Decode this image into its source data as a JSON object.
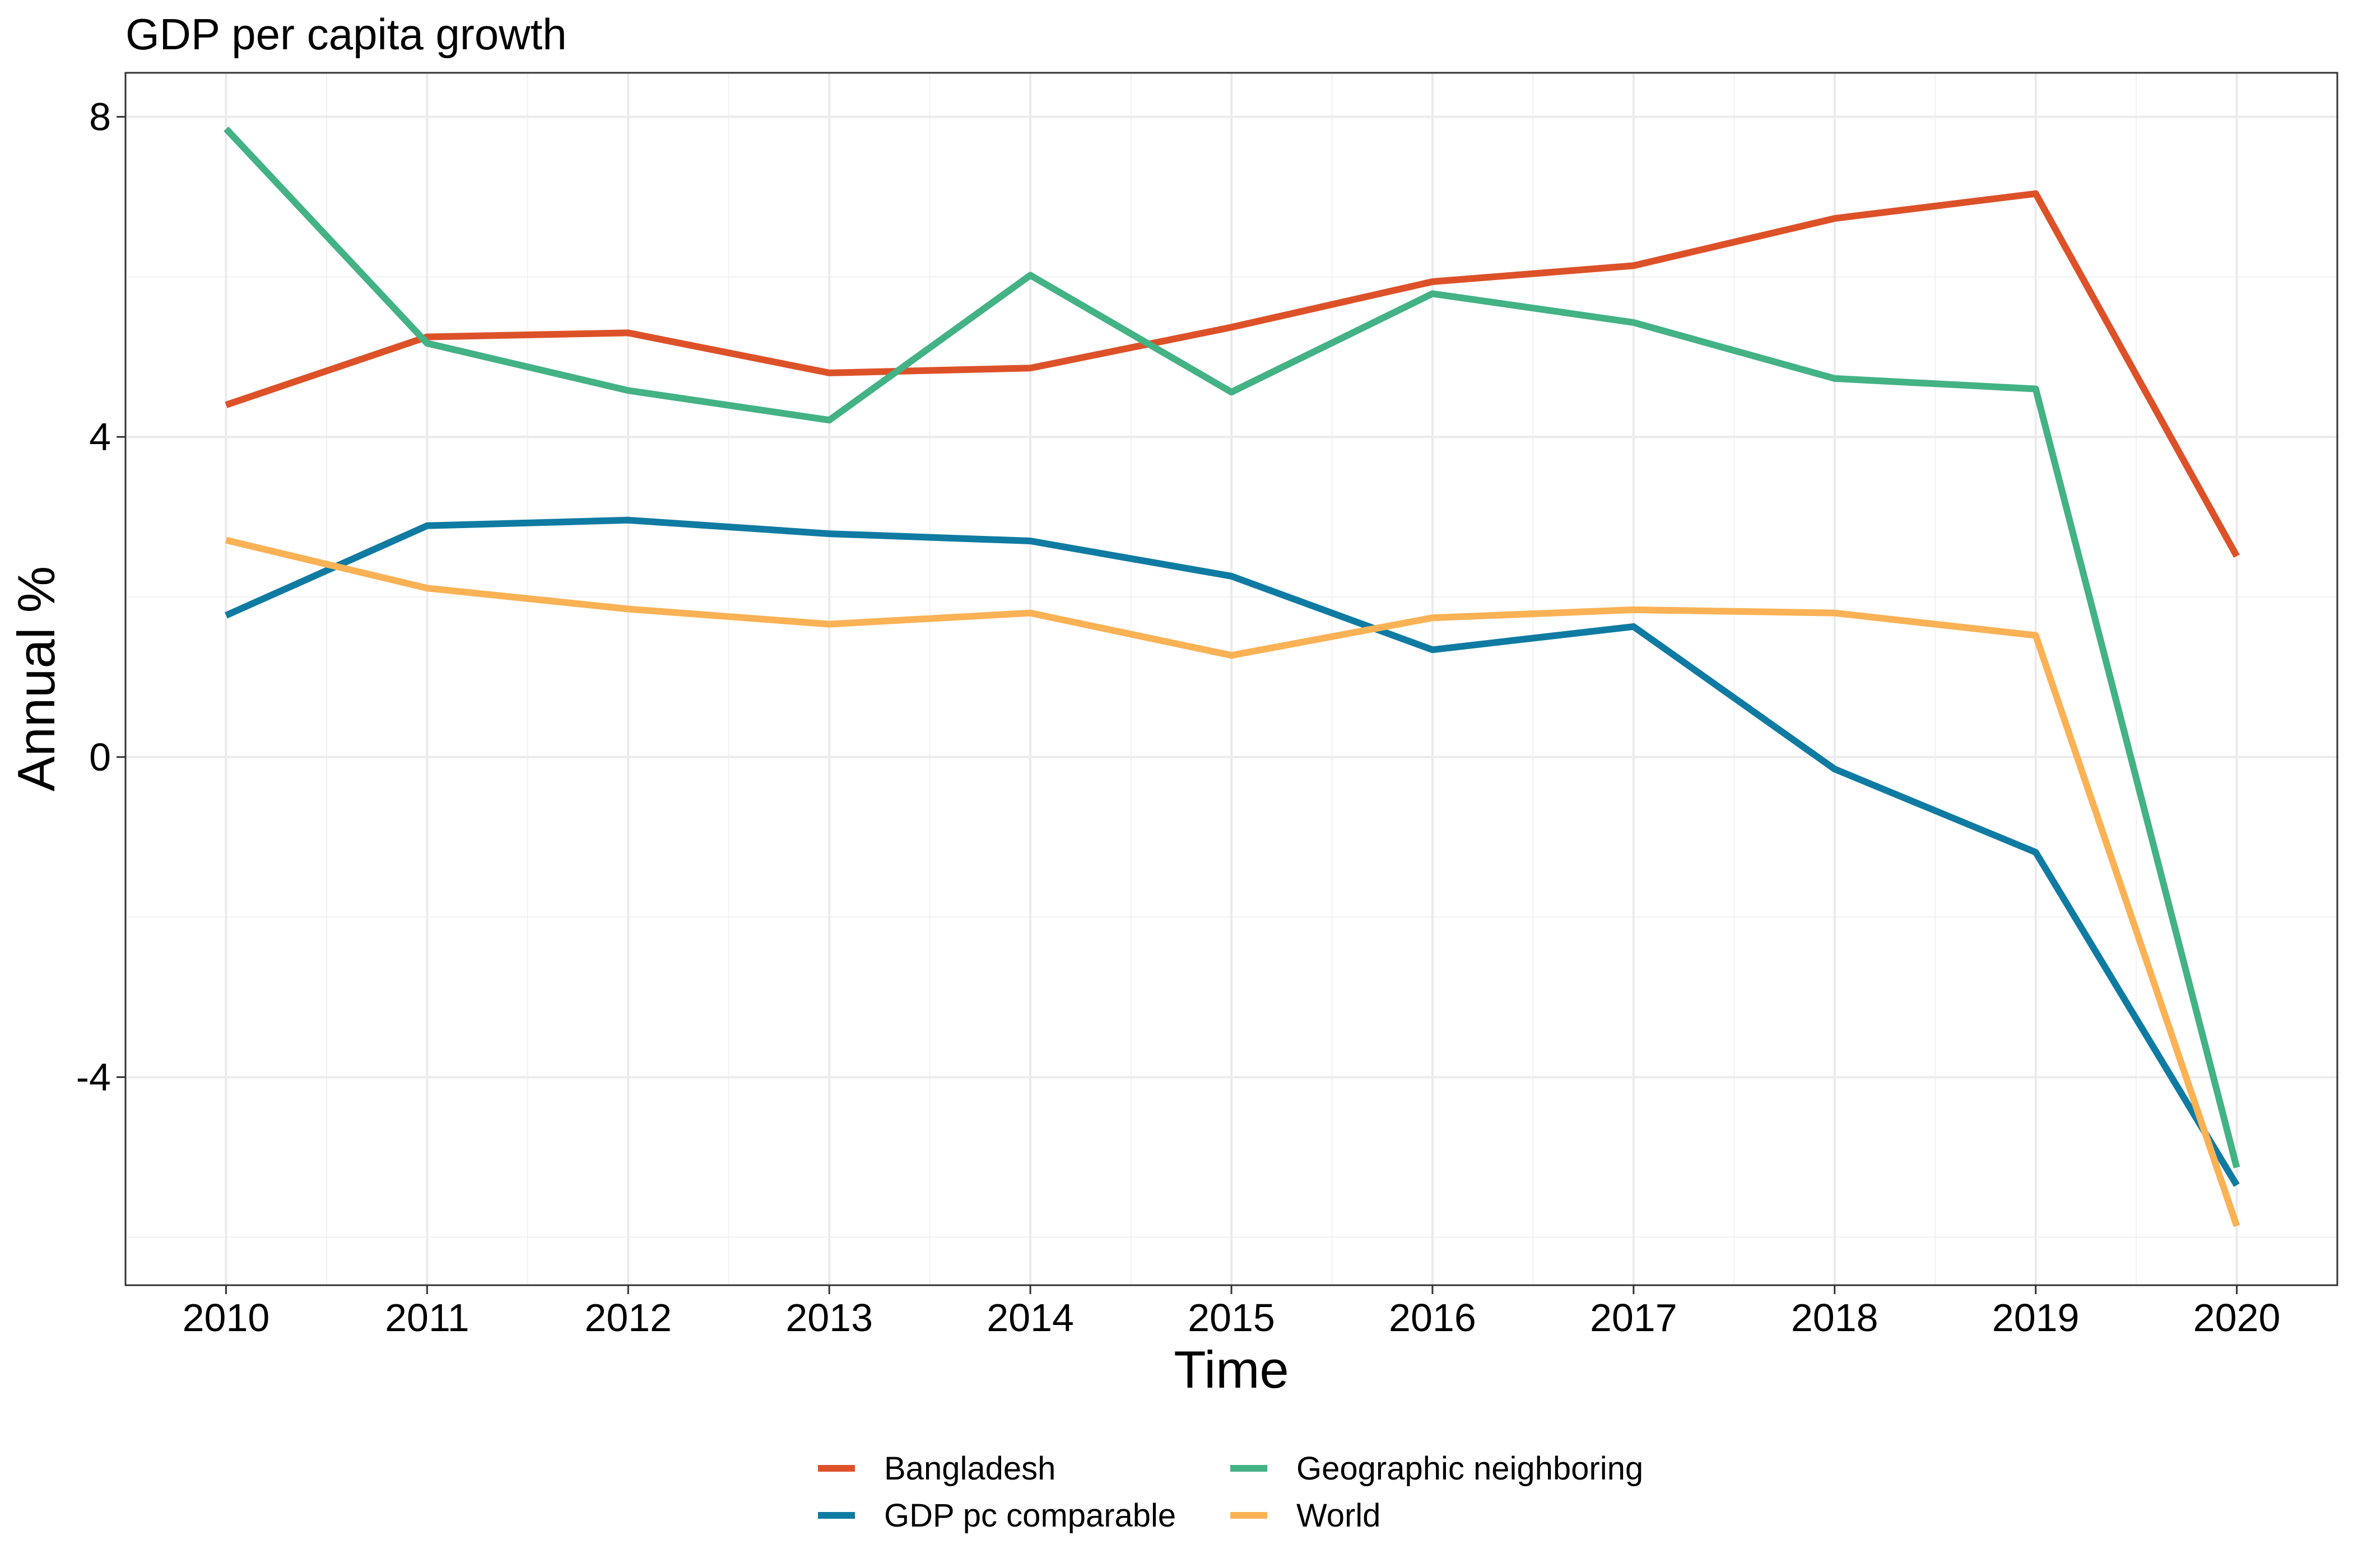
{
  "chart_data": {
    "type": "line",
    "title": "GDP per capita growth",
    "xlabel": "Time",
    "ylabel": "Annual %",
    "x": [
      2010,
      2011,
      2012,
      2013,
      2014,
      2015,
      2016,
      2017,
      2018,
      2019,
      2020
    ],
    "x_ticks": [
      "2010",
      "2011",
      "2012",
      "2013",
      "2014",
      "2015",
      "2016",
      "2017",
      "2018",
      "2019",
      "2020"
    ],
    "y_ticks": [
      "8",
      "4",
      "0",
      "-4"
    ],
    "y_tick_values": [
      8,
      4,
      0,
      -4
    ],
    "xlim": [
      2009.5,
      2020.5
    ],
    "ylim": [
      -6.6,
      8.55
    ],
    "grid": true,
    "legend_position": "bottom",
    "series": [
      {
        "name": "Bangladesh",
        "color": "#dd5129",
        "values": [
          4.4,
          5.25,
          5.3,
          4.8,
          4.86,
          5.37,
          5.94,
          6.14,
          6.73,
          7.04,
          2.51
        ]
      },
      {
        "name": "GDP pc comparable",
        "color": "#0f7ba2",
        "values": [
          1.77,
          2.89,
          2.96,
          2.79,
          2.7,
          2.26,
          1.34,
          1.63,
          -0.15,
          -1.19,
          -5.35
        ]
      },
      {
        "name": "Geographic neighboring",
        "color": "#43b284",
        "values": [
          7.85,
          5.17,
          4.58,
          4.21,
          6.02,
          4.56,
          5.79,
          5.43,
          4.73,
          4.6,
          -5.13
        ]
      },
      {
        "name": "World",
        "color": "#fab255",
        "values": [
          2.71,
          2.11,
          1.85,
          1.66,
          1.8,
          1.27,
          1.74,
          1.84,
          1.8,
          1.52,
          -5.86
        ]
      }
    ]
  }
}
